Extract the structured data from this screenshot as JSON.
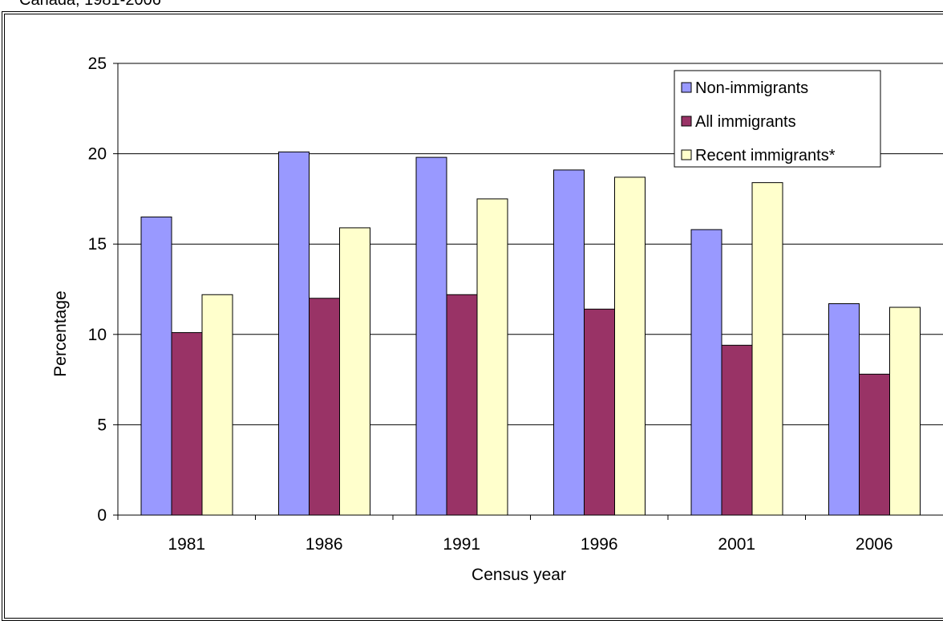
{
  "caption": "Canada, 1981-2006",
  "chart_data": {
    "type": "bar",
    "categories": [
      "1981",
      "1986",
      "1991",
      "1996",
      "2001",
      "2006"
    ],
    "series": [
      {
        "name": "Non-immigrants",
        "color": "#9999ff",
        "values": [
          16.5,
          20.1,
          19.8,
          19.1,
          15.8,
          11.7
        ]
      },
      {
        "name": "All immigrants",
        "color": "#993366",
        "values": [
          10.1,
          12.0,
          12.2,
          11.4,
          9.4,
          7.8
        ]
      },
      {
        "name": "Recent immigrants*",
        "color": "#ffffcc",
        "values": [
          12.2,
          15.9,
          17.5,
          18.7,
          18.4,
          11.5
        ]
      }
    ],
    "ylabel": "Percentage",
    "xlabel": "Census year",
    "ylim": [
      0,
      25
    ],
    "yticks": [
      0,
      5,
      10,
      15,
      20,
      25
    ],
    "grid": true,
    "legend_position": "top-right"
  }
}
